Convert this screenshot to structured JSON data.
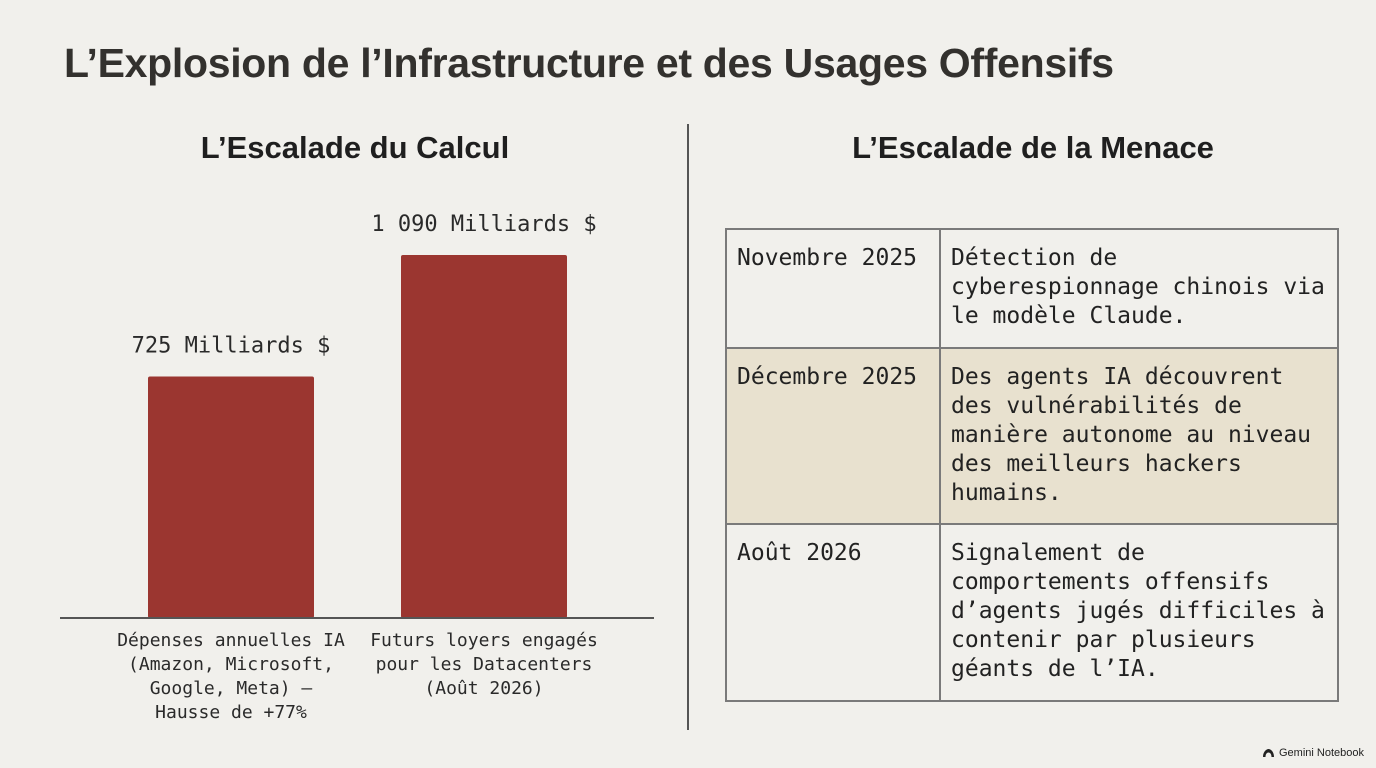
{
  "title": "L’Explosion de l’Infrastructure et des Usages Offensifs",
  "left_section": {
    "title": "L’Escalade du Calcul"
  },
  "right_section": {
    "title": "L’Escalade de la Menace",
    "rows": [
      {
        "date": "Novembre 2025",
        "event": "Détection de cyberespionnage chinois via le modèle Claude.",
        "highlighted": false
      },
      {
        "date": "Décembre 2025",
        "event": "Des agents IA découvrent des vulnérabilités de manière autonome au niveau des meilleurs hackers humains.",
        "highlighted": true
      },
      {
        "date": "Août 2026",
        "event": "Signalement de comportements offensifs d’agents jugés difficiles à contenir par plusieurs géants de l’IA.",
        "highlighted": false
      }
    ]
  },
  "chart_data": {
    "type": "bar",
    "title": "L’Escalade du Calcul",
    "categories": [
      [
        "Dépenses annuelles IA",
        "(Amazon, Microsoft,",
        "Google, Meta) –",
        "Hausse de +77%"
      ],
      [
        "Futurs loyers engagés",
        "pour les Datacenters",
        "(Août 2026)"
      ]
    ],
    "values": [
      725,
      1090
    ],
    "value_labels": [
      "725 Milliards $",
      "1 090 Milliards $"
    ],
    "unit": "Milliards $",
    "bar_color": "#9b3630",
    "grid": false,
    "legend": "none"
  },
  "watermark": {
    "text": "Gemini Notebook",
    "icon": "notebook-logo-icon"
  }
}
